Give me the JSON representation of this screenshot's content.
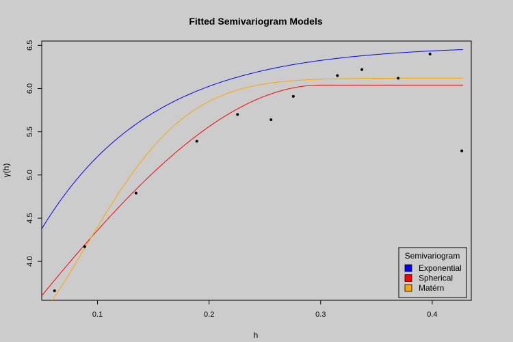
{
  "chart_data": {
    "type": "scatter",
    "title": "Fitted Semivariogram Models",
    "xlabel": "h",
    "ylabel": "γ(h)",
    "xlim": [
      0.05,
      0.435
    ],
    "ylim": [
      3.55,
      6.55
    ],
    "xticks": [
      0.1,
      0.2,
      0.3,
      0.4
    ],
    "xtick_labels": [
      "0.1",
      "0.2",
      "0.3",
      "0.4"
    ],
    "yticks": [
      4.0,
      4.5,
      5.0,
      5.5,
      6.0,
      6.5
    ],
    "ytick_labels": [
      "4.0",
      "4.5",
      "5.0",
      "5.5",
      "6.0",
      "6.5"
    ],
    "grid": false,
    "points": [
      {
        "x": 0.0615,
        "y": 3.66
      },
      {
        "x": 0.0885,
        "y": 4.17
      },
      {
        "x": 0.1345,
        "y": 4.79
      },
      {
        "x": 0.189,
        "y": 5.39
      },
      {
        "x": 0.2255,
        "y": 5.7
      },
      {
        "x": 0.2555,
        "y": 5.64
      },
      {
        "x": 0.2755,
        "y": 5.91
      },
      {
        "x": 0.315,
        "y": 6.15
      },
      {
        "x": 0.337,
        "y": 6.22
      },
      {
        "x": 0.3695,
        "y": 6.12
      },
      {
        "x": 0.398,
        "y": 6.4
      },
      {
        "x": 0.4265,
        "y": 5.28
      }
    ],
    "series": [
      {
        "name": "Exponential",
        "color": "#0000ff",
        "model": "exponential",
        "nugget": 3.0,
        "psill": 3.5,
        "range": 0.1
      },
      {
        "name": "Spherical",
        "color": "#ff0000",
        "model": "spherical",
        "nugget": 2.8,
        "psill": 3.24,
        "range": 0.3
      },
      {
        "name": "Matérn",
        "color": "#ffa500",
        "model": "gaussian",
        "nugget": 6.12,
        "psill": -3.2,
        "range": 0.127
      }
    ],
    "curve_x_range": [
      0.05,
      0.4275
    ],
    "legend": {
      "title": "Semivariogram",
      "placement": "bottom-right",
      "entries": [
        {
          "label": "Exponential",
          "color": "#0000ff"
        },
        {
          "label": "Spherical",
          "color": "#ff0000"
        },
        {
          "label": "Matérn",
          "color": "#ffa500"
        }
      ]
    }
  }
}
